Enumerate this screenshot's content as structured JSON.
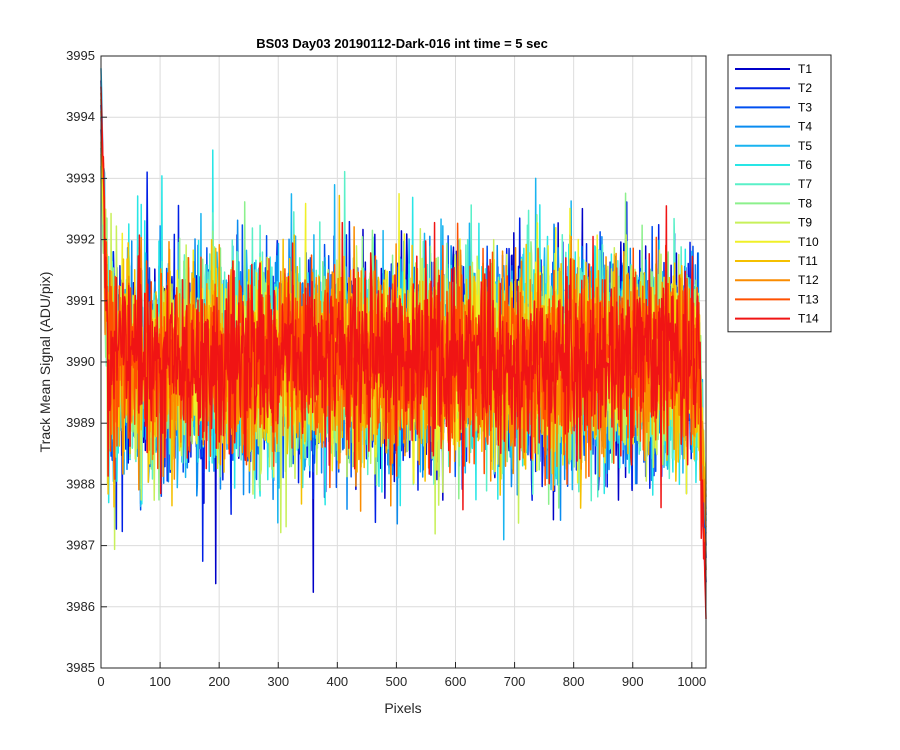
{
  "chart_data": {
    "type": "line",
    "title": "BS03 Day03 20190112-Dark-016 int time = 5 sec",
    "xlabel": "Pixels",
    "ylabel": "Track Mean Signal (ADU/pix)",
    "xlim": [
      0,
      1024
    ],
    "ylim": [
      3985,
      3995
    ],
    "xticks": [
      0,
      100,
      200,
      300,
      400,
      500,
      600,
      700,
      800,
      900,
      1000
    ],
    "yticks": [
      3985,
      3986,
      3987,
      3988,
      3989,
      3990,
      3991,
      3992,
      3993,
      3994,
      3995
    ],
    "grid": true,
    "legend_position": "outside-top-right",
    "n_points": 1024,
    "series": [
      {
        "name": "T1",
        "color": "#0000c8",
        "mean": 3990.0,
        "spread": 1.15,
        "start": 3994.6,
        "end": 3986.4
      },
      {
        "name": "T2",
        "color": "#0020e6",
        "mean": 3990.0,
        "spread": 1.15,
        "start": 3994.2,
        "end": 3986.8
      },
      {
        "name": "T3",
        "color": "#0050f0",
        "mean": 3990.0,
        "spread": 1.1,
        "start": 3993.8,
        "end": 3987.0
      },
      {
        "name": "T4",
        "color": "#0a8cf0",
        "mean": 3990.0,
        "spread": 1.1,
        "start": 3994.0,
        "end": 3987.2
      },
      {
        "name": "T5",
        "color": "#19b4f0",
        "mean": 3990.0,
        "spread": 1.1,
        "start": 3994.8,
        "end": 3987.5
      },
      {
        "name": "T6",
        "color": "#28e6e6",
        "mean": 3990.0,
        "spread": 1.1,
        "start": 3993.5,
        "end": 3987.4
      },
      {
        "name": "T7",
        "color": "#5af0c8",
        "mean": 3990.0,
        "spread": 1.05,
        "start": 3993.2,
        "end": 3987.6
      },
      {
        "name": "T8",
        "color": "#8cf08c",
        "mean": 3990.0,
        "spread": 1.05,
        "start": 3993.0,
        "end": 3987.8
      },
      {
        "name": "T9",
        "color": "#c8f05a",
        "mean": 3990.0,
        "spread": 1.05,
        "start": 3993.4,
        "end": 3987.9
      },
      {
        "name": "T10",
        "color": "#f0f028",
        "mean": 3990.0,
        "spread": 1.0,
        "start": 3993.6,
        "end": 3988.0
      },
      {
        "name": "T11",
        "color": "#f5c000",
        "mean": 3990.0,
        "spread": 1.0,
        "start": 3994.1,
        "end": 3987.8
      },
      {
        "name": "T12",
        "color": "#fa8c00",
        "mean": 3990.0,
        "spread": 1.0,
        "start": 3994.3,
        "end": 3987.3
      },
      {
        "name": "T13",
        "color": "#ff5000",
        "mean": 3990.0,
        "spread": 0.95,
        "start": 3994.4,
        "end": 3986.6
      },
      {
        "name": "T14",
        "color": "#f01414",
        "mean": 3990.0,
        "spread": 0.95,
        "start": 3994.5,
        "end": 3985.8
      }
    ]
  }
}
